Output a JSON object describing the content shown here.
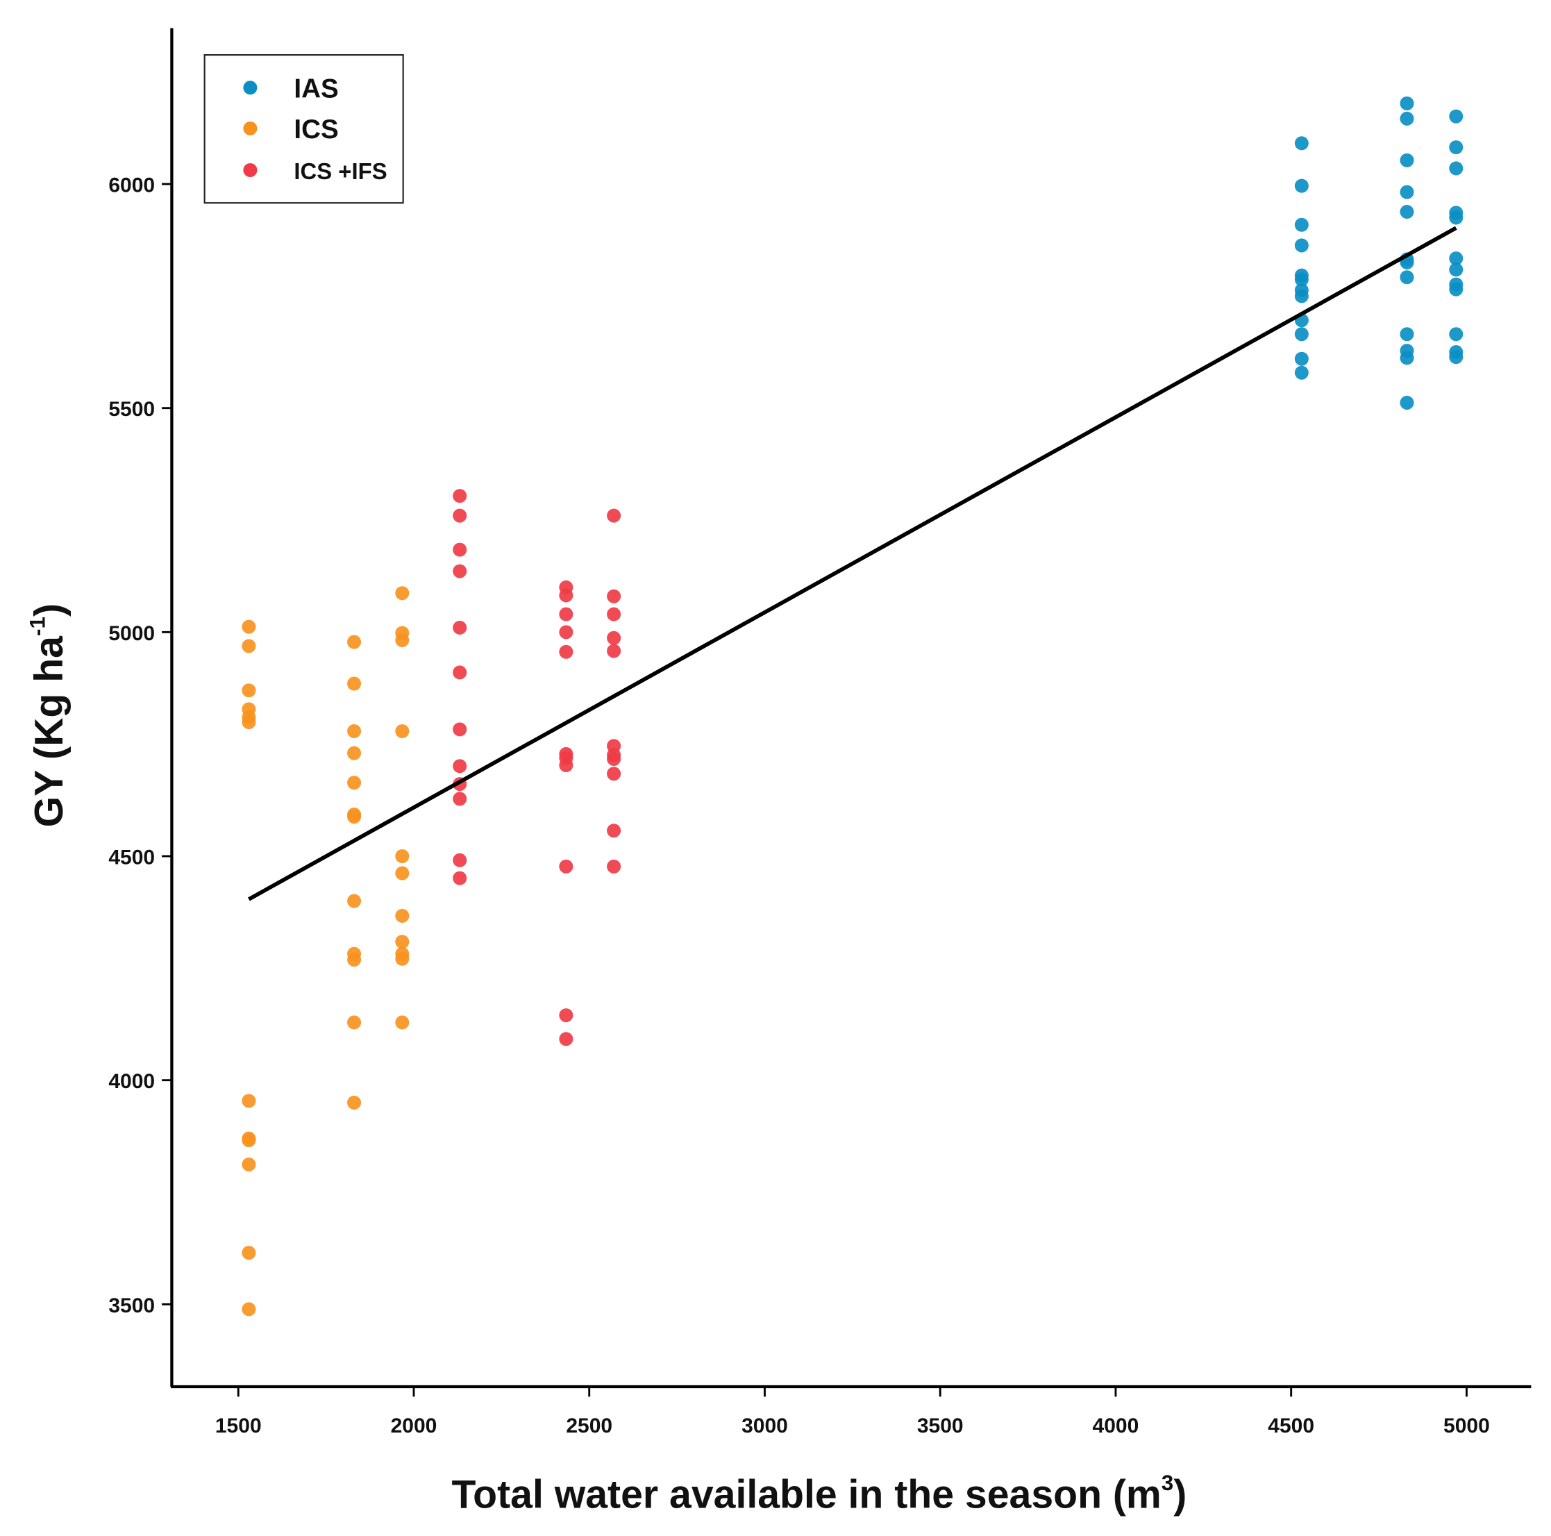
{
  "chart_data": {
    "type": "scatter",
    "title": "",
    "xlabel": "Total water available in the season (m",
    "xlabel_sup": "3",
    "xlabel_end": ")",
    "ylabel": "GY (Kg ha",
    "ylabel_sup": "-1",
    "ylabel_end": ")",
    "xlim": [
      1310,
      5180
    ],
    "ylim": [
      3318,
      6343
    ],
    "xticks": [
      1500,
      2000,
      2500,
      3000,
      3500,
      4000,
      4500,
      5000
    ],
    "yticks": [
      3500,
      4000,
      4500,
      5000,
      5500,
      6000
    ],
    "grid": false,
    "legend_position": "top-left",
    "series": [
      {
        "name": "IAS",
        "color": "#0b8ec4",
        "points": [
          [
            4530,
            6091
          ],
          [
            4530,
            5996
          ],
          [
            4530,
            5909
          ],
          [
            4530,
            5863
          ],
          [
            4530,
            5796
          ],
          [
            4530,
            5787
          ],
          [
            4530,
            5763
          ],
          [
            4530,
            5750
          ],
          [
            4530,
            5696
          ],
          [
            4530,
            5665
          ],
          [
            4530,
            5610
          ],
          [
            4530,
            5579
          ],
          [
            4830,
            6180
          ],
          [
            4830,
            6146
          ],
          [
            4830,
            6053
          ],
          [
            4830,
            5982
          ],
          [
            4830,
            5938
          ],
          [
            4830,
            5832
          ],
          [
            4830,
            5825
          ],
          [
            4830,
            5792
          ],
          [
            4830,
            5665
          ],
          [
            4830,
            5628
          ],
          [
            4830,
            5612
          ],
          [
            4830,
            5512
          ],
          [
            4970,
            6151
          ],
          [
            4970,
            6082
          ],
          [
            4970,
            6035
          ],
          [
            4970,
            5936
          ],
          [
            4970,
            5925
          ],
          [
            4970,
            5834
          ],
          [
            4970,
            5809
          ],
          [
            4970,
            5776
          ],
          [
            4970,
            5765
          ],
          [
            4970,
            5665
          ],
          [
            4970,
            5625
          ],
          [
            4970,
            5614
          ]
        ]
      },
      {
        "name": "ICS",
        "color": "#f7921e",
        "points": [
          [
            1530,
            5012
          ],
          [
            1530,
            4969
          ],
          [
            1530,
            4870
          ],
          [
            1530,
            4828
          ],
          [
            1530,
            4810
          ],
          [
            1530,
            4799
          ],
          [
            1530,
            3954
          ],
          [
            1530,
            3870
          ],
          [
            1530,
            3866
          ],
          [
            1530,
            3812
          ],
          [
            1530,
            3615
          ],
          [
            1530,
            3489
          ],
          [
            1830,
            4978
          ],
          [
            1830,
            4885
          ],
          [
            1830,
            4779
          ],
          [
            1830,
            4730
          ],
          [
            1830,
            4664
          ],
          [
            1830,
            4593
          ],
          [
            1830,
            4588
          ],
          [
            1830,
            4400
          ],
          [
            1830,
            4282
          ],
          [
            1830,
            4269
          ],
          [
            1830,
            4129
          ],
          [
            1830,
            3950
          ],
          [
            1967,
            5087
          ],
          [
            1967,
            4998
          ],
          [
            1967,
            4982
          ],
          [
            1967,
            4779
          ],
          [
            1967,
            4500
          ],
          [
            1967,
            4462
          ],
          [
            1967,
            4367
          ],
          [
            1967,
            4309
          ],
          [
            1967,
            4282
          ],
          [
            1967,
            4271
          ],
          [
            1967,
            4129
          ]
        ]
      },
      {
        "name": "ICS +IFS",
        "color": "#ef3b47",
        "points": [
          [
            2131,
            5304
          ],
          [
            2131,
            5260
          ],
          [
            2131,
            5184
          ],
          [
            2131,
            5136
          ],
          [
            2131,
            5010
          ],
          [
            2131,
            4910
          ],
          [
            2131,
            4783
          ],
          [
            2131,
            4701
          ],
          [
            2131,
            4661
          ],
          [
            2131,
            4628
          ],
          [
            2131,
            4491
          ],
          [
            2131,
            4451
          ],
          [
            2434,
            5100
          ],
          [
            2434,
            5082
          ],
          [
            2434,
            5040
          ],
          [
            2434,
            5000
          ],
          [
            2434,
            4956
          ],
          [
            2434,
            4728
          ],
          [
            2434,
            4719
          ],
          [
            2434,
            4703
          ],
          [
            2434,
            4477
          ],
          [
            2434,
            4145
          ],
          [
            2434,
            4092
          ],
          [
            2570,
            5260
          ],
          [
            2570,
            5080
          ],
          [
            2570,
            5040
          ],
          [
            2570,
            4987
          ],
          [
            2570,
            4958
          ],
          [
            2570,
            4746
          ],
          [
            2570,
            4726
          ],
          [
            2570,
            4717
          ],
          [
            2570,
            4684
          ],
          [
            2570,
            4557
          ],
          [
            2570,
            4477
          ]
        ]
      }
    ],
    "trendline": {
      "x": [
        1530,
        4970
      ],
      "y": [
        4404,
        5902
      ],
      "color": "#000000"
    }
  }
}
